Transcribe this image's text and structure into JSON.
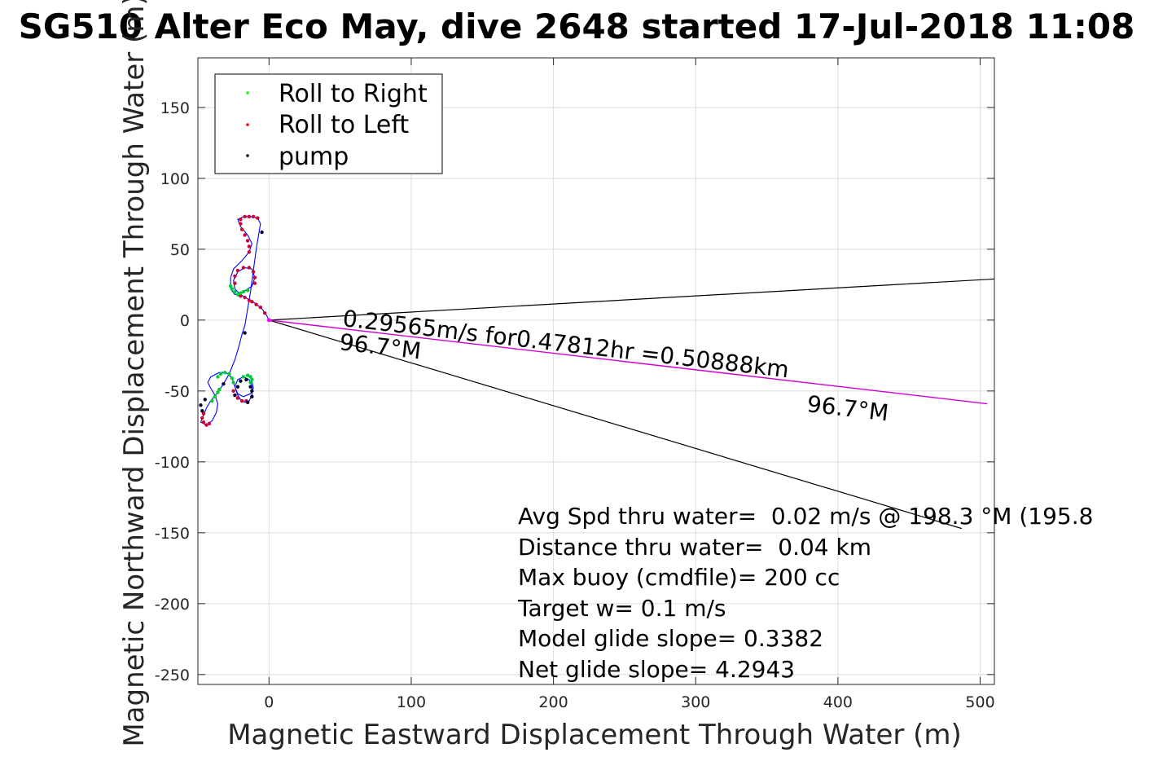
{
  "chart_data": {
    "type": "line",
    "title": "SG510 Alter Eco May, dive 2648 started 17-Jul-2018 11:08",
    "xlabel": "Magnetic Eastward Displacement Through Water (m)",
    "ylabel": "Magnetic Northward Displacement Through Water (m)",
    "xlim": [
      -50,
      510
    ],
    "ylim": [
      -257,
      185
    ],
    "xticks": [
      0,
      100,
      200,
      300,
      400,
      500
    ],
    "yticks": [
      150,
      100,
      50,
      0,
      -50,
      -100,
      -150,
      -200,
      -250
    ],
    "xtick_labels": [
      "0",
      "100",
      "200",
      "300",
      "400",
      "500"
    ],
    "ytick_labels": [
      "150",
      "100",
      "50",
      "0",
      "-50",
      "-100",
      "-150",
      "-200",
      "-250"
    ],
    "grid": true,
    "legend": {
      "placement": "top-left",
      "entries": [
        {
          "label": "Roll to Right",
          "color": "#00ff00"
        },
        {
          "label": "Roll to Left",
          "color": "#ff0000"
        },
        {
          "label": "pump",
          "color": "#000000"
        }
      ]
    },
    "track": {
      "color": "#0000ff",
      "points": [
        [
          0,
          0
        ],
        [
          -2,
          4
        ],
        [
          -5,
          8
        ],
        [
          -10,
          12
        ],
        [
          -15,
          15
        ],
        [
          -20,
          18
        ],
        [
          -24,
          22
        ],
        [
          -25,
          28
        ],
        [
          -22,
          34
        ],
        [
          -17,
          37
        ],
        [
          -12,
          36
        ],
        [
          -10,
          30
        ],
        [
          -12,
          24
        ],
        [
          -18,
          20
        ],
        [
          -24,
          18
        ],
        [
          -27,
          22
        ],
        [
          -27,
          30
        ],
        [
          -25,
          36
        ],
        [
          -19,
          42
        ],
        [
          -14,
          48
        ],
        [
          -12,
          54
        ],
        [
          -15,
          60
        ],
        [
          -20,
          66
        ],
        [
          -22,
          71
        ],
        [
          -18,
          73
        ],
        [
          -13,
          73
        ],
        [
          -8,
          72
        ],
        [
          -6,
          68
        ],
        [
          -7,
          62
        ],
        [
          -9,
          50
        ],
        [
          -11,
          35
        ],
        [
          -13,
          20
        ],
        [
          -15,
          8
        ],
        [
          -17,
          -4
        ],
        [
          -19,
          -10
        ],
        [
          -21,
          -18
        ],
        [
          -24,
          -28
        ],
        [
          -28,
          -38
        ],
        [
          -32,
          -45
        ],
        [
          -36,
          -51
        ],
        [
          -41,
          -57
        ],
        [
          -44,
          -62
        ],
        [
          -46,
          -67
        ],
        [
          -48,
          -72
        ],
        [
          -44,
          -74
        ],
        [
          -40,
          -71
        ],
        [
          -37,
          -65
        ],
        [
          -36,
          -59
        ],
        [
          -38,
          -53
        ],
        [
          -41,
          -48
        ],
        [
          -43,
          -44
        ],
        [
          -41,
          -40
        ],
        [
          -35,
          -37
        ],
        [
          -30,
          -37
        ],
        [
          -26,
          -41
        ],
        [
          -24,
          -47
        ],
        [
          -22,
          -53
        ],
        [
          -20,
          -56
        ],
        [
          -17,
          -58
        ],
        [
          -14,
          -57
        ],
        [
          -12,
          -53
        ],
        [
          -12,
          -47
        ],
        [
          -14,
          -42
        ],
        [
          -18,
          -40
        ],
        [
          -22,
          -42
        ],
        [
          -24,
          -47
        ],
        [
          -22,
          -52
        ],
        [
          -18,
          -54
        ],
        [
          -13,
          -52
        ],
        [
          -11,
          -48
        ],
        [
          -12,
          -43
        ]
      ]
    },
    "roll_right_points": [
      [
        -22,
        18
      ],
      [
        -24,
        20
      ],
      [
        -26,
        22
      ],
      [
        -27,
        24
      ],
      [
        -20,
        19
      ],
      [
        -18,
        20
      ],
      [
        -15,
        21
      ],
      [
        -36,
        -40
      ],
      [
        -34,
        -38
      ],
      [
        -31,
        -37
      ],
      [
        -28,
        -38
      ],
      [
        -26,
        -41
      ],
      [
        -25,
        -44
      ],
      [
        -40,
        -57
      ],
      [
        -38,
        -54
      ],
      [
        -36,
        -51
      ],
      [
        -35,
        -49
      ],
      [
        -13,
        -44
      ],
      [
        -12,
        -42
      ],
      [
        -13,
        -40
      ],
      [
        -15,
        -39
      ],
      [
        -18,
        -40
      ]
    ],
    "roll_left_points": [
      [
        -3,
        5
      ],
      [
        -6,
        9
      ],
      [
        -9,
        11
      ],
      [
        -12,
        13
      ],
      [
        -14,
        14
      ],
      [
        -17,
        16
      ],
      [
        -20,
        17
      ],
      [
        -24,
        26
      ],
      [
        -24,
        31
      ],
      [
        -22,
        35
      ],
      [
        -18,
        37
      ],
      [
        -14,
        37
      ],
      [
        -11,
        34
      ],
      [
        -10,
        30
      ],
      [
        -10,
        26
      ],
      [
        -14,
        48
      ],
      [
        -14,
        52
      ],
      [
        -15,
        56
      ],
      [
        -17,
        60
      ],
      [
        -19,
        64
      ],
      [
        -20,
        68
      ],
      [
        -20,
        71
      ],
      [
        -17,
        73
      ],
      [
        -14,
        73
      ],
      [
        -11,
        73
      ],
      [
        -8,
        72
      ],
      [
        -25,
        -50
      ],
      [
        -24,
        -53
      ],
      [
        -22,
        -55
      ],
      [
        -19,
        -57
      ],
      [
        -16,
        -57
      ],
      [
        -46,
        -66
      ],
      [
        -47,
        -69
      ],
      [
        -46,
        -72
      ],
      [
        -44,
        -74
      ],
      [
        -42,
        -73
      ]
    ],
    "pump_points": [
      [
        -5,
        62
      ],
      [
        -17,
        -9
      ],
      [
        -32,
        -45
      ],
      [
        -45,
        -56
      ],
      [
        -48,
        -60
      ],
      [
        -47,
        -64
      ],
      [
        -24,
        -53
      ],
      [
        -15,
        -58
      ],
      [
        -12,
        -54
      ],
      [
        -22,
        -47
      ],
      [
        -20,
        -43
      ],
      [
        -16,
        -42
      ],
      [
        -13,
        -47
      ],
      [
        -12,
        -50
      ]
    ],
    "current_vector": {
      "label": "0.29565m/s for0.47812hr =0.50888km",
      "heading_label": "96.7°M",
      "heading_label_near": "96.7°M",
      "end": [
        505,
        -59
      ],
      "color": "#d000d0"
    },
    "fan_lines": [
      {
        "from": [
          0,
          0
        ],
        "to": [
          510,
          29
        ]
      },
      {
        "from": [
          0,
          0
        ],
        "to": [
          487,
          -147
        ]
      }
    ],
    "stats": [
      "Avg Spd thru water=  0.02 m/s @ 198.3 °M (195.8",
      "Distance thru water=  0.04 km",
      "Max buoy (cmdfile)= 200 cc",
      "Target w= 0.1 m/s",
      "Model glide slope= 0.3382",
      "Net glide slope= 4.2943"
    ]
  }
}
